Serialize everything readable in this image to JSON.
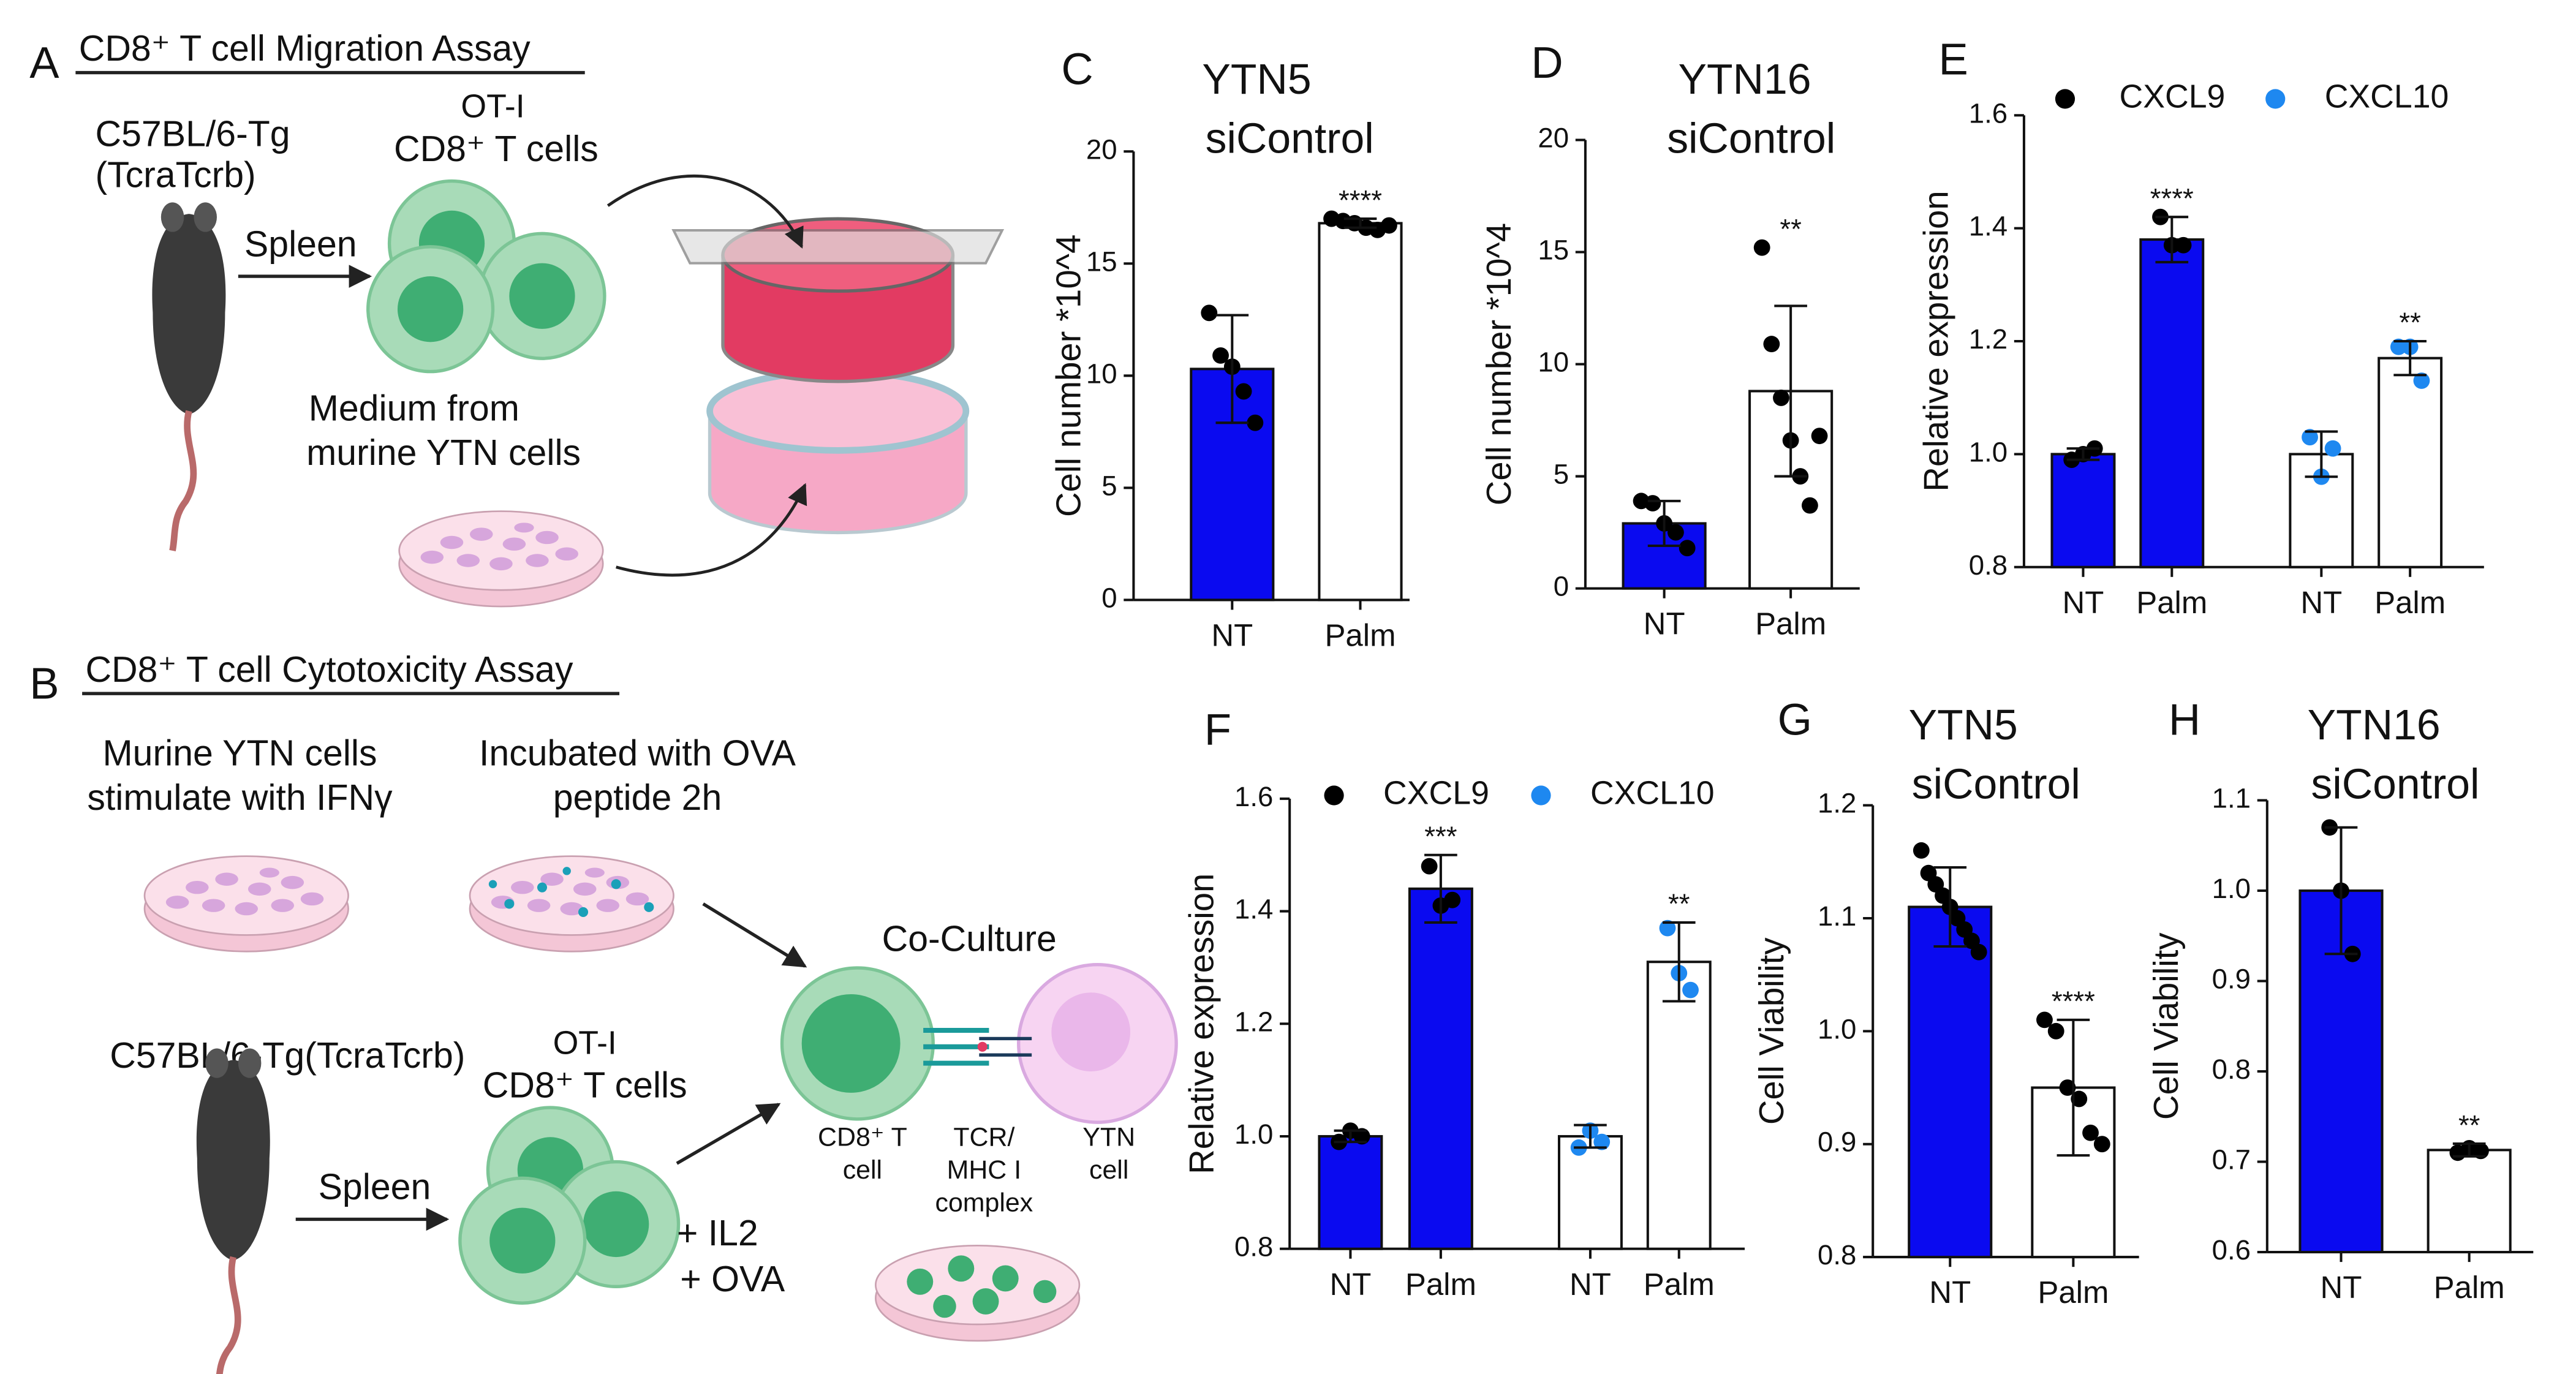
{
  "diagram_a": {
    "label": "A",
    "title": "CD8⁺ T cell Migration Assay",
    "mouse_strain": [
      "C57BL/6-Tg",
      "(TcraTcrb)"
    ],
    "cells": [
      "OT-I",
      "CD8⁺ T cells"
    ],
    "step": "Spleen",
    "medium": [
      "Medium from",
      "murine YTN cells"
    ]
  },
  "diagram_b": {
    "label": "B",
    "title": "CD8⁺ T cell Cytotoxicity Assay",
    "stimulation": [
      "Murine YTN cells",
      "stimulate with IFNγ"
    ],
    "incubation": [
      "Incubated with OVA",
      "peptide 2h"
    ],
    "mouse_strain": "C57BL/6-Tg(TcraTcrb)",
    "cells": [
      "OT-I",
      "CD8⁺ T cells"
    ],
    "step": "Spleen",
    "additions": [
      "+ IL2",
      "+ OVA"
    ],
    "coculture": "Co-Culture",
    "cd8_cell": [
      "CD8⁺ T",
      "cell"
    ],
    "complex": [
      "TCR/",
      "MHC I",
      "complex"
    ],
    "ytn_cell": [
      "YTN",
      "cell"
    ]
  },
  "chart_data": [
    {
      "label": "C",
      "type": "bar",
      "title": [
        "YTN5",
        "siControl"
      ],
      "ylabel": "Cell number *10^4",
      "categories": [
        "NT",
        "Palm"
      ],
      "values": [
        10.3,
        16.8
      ],
      "errors": [
        2.4,
        0.2
      ],
      "colors": [
        "#0a0af0",
        "#ffffff"
      ],
      "point_color": "#000000",
      "points": [
        [
          12.8,
          10.9,
          10.4,
          9.3,
          7.9
        ],
        [
          17.0,
          16.9,
          16.8,
          16.6,
          16.5,
          16.7
        ]
      ],
      "significance": [
        null,
        "****"
      ],
      "ylim": [
        0,
        20
      ],
      "yticks": [
        0,
        5,
        10,
        15,
        20
      ]
    },
    {
      "label": "D",
      "type": "bar",
      "title": [
        "YTN16",
        "siControl"
      ],
      "ylabel": "Cell number *10^4",
      "categories": [
        "NT",
        "Palm"
      ],
      "values": [
        2.9,
        8.8
      ],
      "errors": [
        1.0,
        3.8
      ],
      "colors": [
        "#0a0af0",
        "#ffffff"
      ],
      "point_color": "#000000",
      "points": [
        [
          3.9,
          3.8,
          2.9,
          2.5,
          1.8
        ],
        [
          15.2,
          10.9,
          8.5,
          6.6,
          5.0,
          3.7,
          6.8
        ]
      ],
      "significance": [
        null,
        "**"
      ],
      "ylim": [
        0,
        20
      ],
      "yticks": [
        0,
        5,
        10,
        15,
        20
      ]
    },
    {
      "label": "E",
      "type": "bar",
      "ylabel": "Relative expression",
      "categories": [
        "NT",
        "Palm"
      ],
      "series": [
        {
          "name": "CXCL9",
          "color": "#000000",
          "bar_color": "#0a0af0",
          "values": [
            1.0,
            1.38
          ],
          "errors": [
            0.01,
            0.04
          ],
          "points": [
            [
              0.99,
              1.0,
              1.01
            ],
            [
              1.42,
              1.37,
              1.37
            ]
          ],
          "significance": [
            null,
            "****"
          ]
        },
        {
          "name": "CXCL10",
          "color": "#1e88f0",
          "bar_color": "#ffffff",
          "values": [
            1.0,
            1.17
          ],
          "errors": [
            0.04,
            0.03
          ],
          "points": [
            [
              1.03,
              0.96,
              1.01
            ],
            [
              1.19,
              1.19,
              1.13
            ]
          ],
          "significance": [
            null,
            "**"
          ]
        }
      ],
      "ylim": [
        0.8,
        1.6
      ],
      "yticks": [
        0.8,
        {
          "value": 1,
          "label": "1.0"
        },
        1.2,
        1.4,
        1.6
      ]
    },
    {
      "label": "F",
      "type": "bar",
      "ylabel": "Relative expression",
      "categories": [
        "NT",
        "Palm"
      ],
      "series": [
        {
          "name": "CXCL9",
          "color": "#000000",
          "bar_color": "#0a0af0",
          "values": [
            1.0,
            1.44
          ],
          "errors": [
            0.01,
            0.06
          ],
          "points": [
            [
              0.99,
              1.01,
              1.0
            ],
            [
              1.48,
              1.41,
              1.42
            ]
          ],
          "significance": [
            null,
            "***"
          ]
        },
        {
          "name": "CXCL10",
          "color": "#1e88f0",
          "bar_color": "#ffffff",
          "values": [
            1.0,
            1.31
          ],
          "errors": [
            0.02,
            0.07
          ],
          "points": [
            [
              0.98,
              1.01,
              0.99
            ],
            [
              1.37,
              1.29,
              1.26
            ]
          ],
          "significance": [
            null,
            "**"
          ]
        }
      ],
      "ylim": [
        0.8,
        1.6
      ],
      "yticks": [
        0.8,
        {
          "value": 1,
          "label": "1.0"
        },
        1.2,
        1.4,
        1.6
      ]
    },
    {
      "label": "G",
      "type": "bar",
      "title": [
        "YTN5",
        "siControl"
      ],
      "ylabel": "Cell Viability",
      "categories": [
        "NT",
        "Palm"
      ],
      "values": [
        1.11,
        0.95
      ],
      "errors": [
        0.035,
        0.06
      ],
      "colors": [
        "#0a0af0",
        "#ffffff"
      ],
      "point_color": "#000000",
      "points": [
        [
          1.16,
          1.14,
          1.13,
          1.12,
          1.11,
          1.1,
          1.09,
          1.08,
          1.07
        ],
        [
          1.01,
          1.0,
          0.95,
          0.94,
          0.91,
          0.9
        ]
      ],
      "significance": [
        null,
        "****"
      ],
      "ylim": [
        0.8,
        1.2
      ],
      "yticks": [
        0.8,
        0.9,
        {
          "value": 1,
          "label": "1.0"
        },
        1.1,
        1.2
      ]
    },
    {
      "label": "H",
      "type": "bar",
      "title": [
        "YTN16",
        "siControl"
      ],
      "ylabel": "Cell Viability",
      "categories": [
        "NT",
        "Palm"
      ],
      "values": [
        1.0,
        0.713
      ],
      "errors": [
        0.07,
        0.007
      ],
      "colors": [
        "#0a0af0",
        "#ffffff"
      ],
      "point_color": "#000000",
      "points": [
        [
          1.07,
          1.0,
          0.93
        ],
        [
          0.71,
          0.715,
          0.712
        ]
      ],
      "significance": [
        null,
        "**"
      ],
      "ylim": [
        0.6,
        1.1
      ],
      "yticks": [
        0.6,
        0.7,
        0.8,
        0.9,
        {
          "value": 1,
          "label": "1.0"
        },
        1.1
      ]
    }
  ]
}
